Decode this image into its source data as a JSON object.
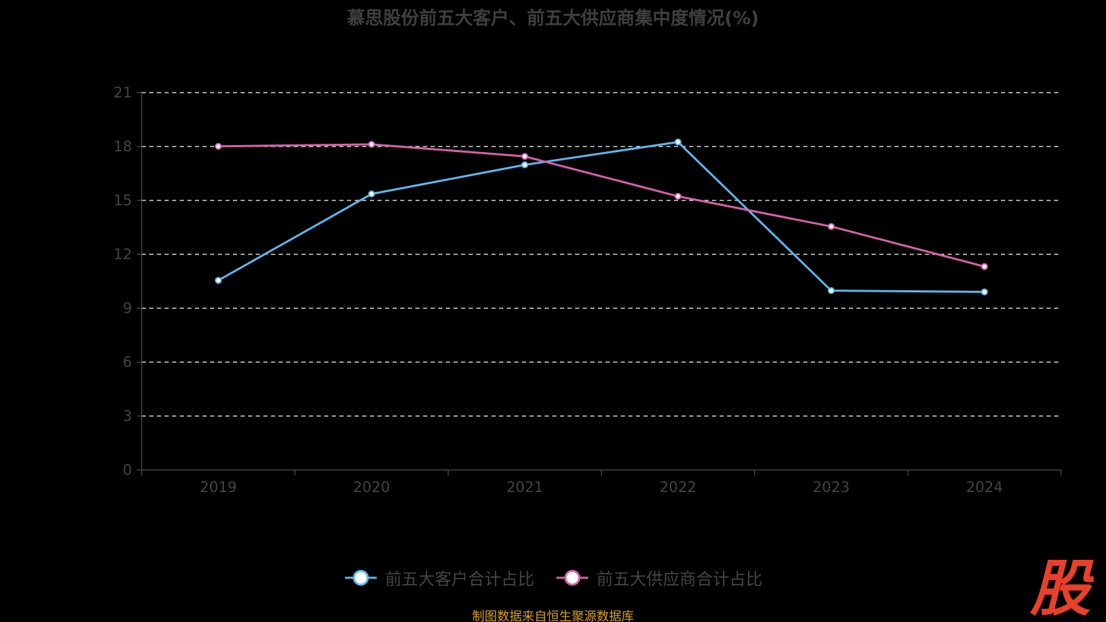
{
  "title": "慕思股份前五大客户、前五大供应商集中度情况(%)",
  "source": "制图数据来自恒生聚源数据库",
  "brand": {
    "text": "股",
    "color": "#e8402a"
  },
  "colors": {
    "background": "#000000",
    "grid": "#ffffff",
    "axis": "#555555",
    "customer": "#5bb8ee",
    "supplier": "#d860a8"
  },
  "chart_data": {
    "type": "line",
    "title": "慕思股份前五大客户、前五大供应商集中度情况(%)",
    "xlabel": "",
    "ylabel": "",
    "categories": [
      "2019",
      "2020",
      "2021",
      "2022",
      "2023",
      "2024"
    ],
    "ylim": [
      0,
      21
    ],
    "yticks": [
      0,
      3,
      6,
      9,
      12,
      15,
      18,
      21
    ],
    "grid": true,
    "legend_position": "bottom",
    "series": [
      {
        "name": "前五大客户合计占比",
        "color": "#5bb8ee",
        "values": [
          10.55,
          15.36,
          16.98,
          18.25,
          9.98,
          9.91
        ]
      },
      {
        "name": "前五大供应商合计占比",
        "color": "#d860a8",
        "values": [
          18.01,
          18.12,
          17.45,
          15.23,
          13.55,
          11.32
        ]
      }
    ]
  }
}
